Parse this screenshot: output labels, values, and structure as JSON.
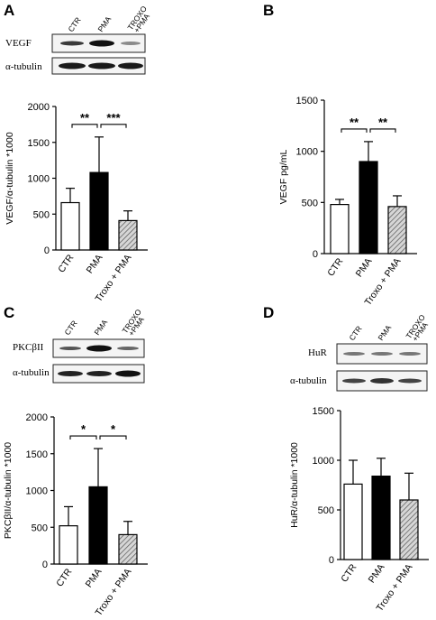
{
  "panel_letters": {
    "a": "A",
    "b": "B",
    "c": "C",
    "d": "D"
  },
  "colors": {
    "ctr_fill": "#ffffff",
    "pma_fill": "#000000",
    "troxo_fill": "hatched-gray",
    "axis": "#000000"
  },
  "blots": {
    "a": {
      "lanes": [
        "CTR",
        "PMA",
        "TROXO",
        "+PMA"
      ],
      "rows": [
        "VEGF",
        "α-tubulin"
      ]
    },
    "c": {
      "lanes": [
        "CTR",
        "PMA",
        "TROXO",
        "+PMA"
      ],
      "rows": [
        "PKCβII",
        "α-tubulin"
      ]
    },
    "d": {
      "lanes": [
        "CTR",
        "PMA",
        "TROXO",
        "+PMA"
      ],
      "rows": [
        "HuR",
        "α-tubulin"
      ]
    }
  },
  "chart_data": [
    {
      "id": "a",
      "type": "bar",
      "categories": [
        "CTR",
        "PMA",
        "Troxo + PMA"
      ],
      "values": [
        660,
        1080,
        410
      ],
      "errors": [
        200,
        495,
        135
      ],
      "ylabel": "VEGF/α-tubulin *1000",
      "ylim": [
        0,
        2000
      ],
      "yticks": [
        "0",
        "500",
        "1000",
        "1500",
        "2000"
      ],
      "significance": [
        {
          "from": 0,
          "to": 1,
          "label": "**"
        },
        {
          "from": 1,
          "to": 2,
          "label": "***"
        }
      ]
    },
    {
      "id": "b",
      "type": "bar",
      "categories": [
        "CTR",
        "PMA",
        "Troxo + PMA"
      ],
      "values": [
        480,
        900,
        460
      ],
      "errors": [
        50,
        195,
        105
      ],
      "ylabel": "VEGF pg/mL",
      "ylim": [
        0,
        1500
      ],
      "yticks": [
        "0",
        "500",
        "1000",
        "1500"
      ],
      "significance": [
        {
          "from": 0,
          "to": 1,
          "label": "**"
        },
        {
          "from": 1,
          "to": 2,
          "label": "**"
        }
      ]
    },
    {
      "id": "c",
      "type": "bar",
      "categories": [
        "CTR",
        "PMA",
        "Troxo + PMA"
      ],
      "values": [
        520,
        1050,
        400
      ],
      "errors": [
        260,
        520,
        180
      ],
      "ylabel": "PKCβII/α-tubulin *1000",
      "ylim": [
        0,
        2000
      ],
      "yticks": [
        "0",
        "500",
        "1000",
        "1500",
        "2000"
      ],
      "significance": [
        {
          "from": 0,
          "to": 1,
          "label": "*"
        },
        {
          "from": 1,
          "to": 2,
          "label": "*"
        }
      ]
    },
    {
      "id": "d",
      "type": "bar",
      "categories": [
        "CTR",
        "PMA",
        "Troxo + PMA"
      ],
      "values": [
        760,
        840,
        600
      ],
      "errors": [
        240,
        180,
        270
      ],
      "ylabel": "HuR/α-tubulin *1000",
      "ylim": [
        0,
        1500
      ],
      "yticks": [
        "0",
        "500",
        "1000",
        "1500"
      ],
      "significance": []
    }
  ]
}
